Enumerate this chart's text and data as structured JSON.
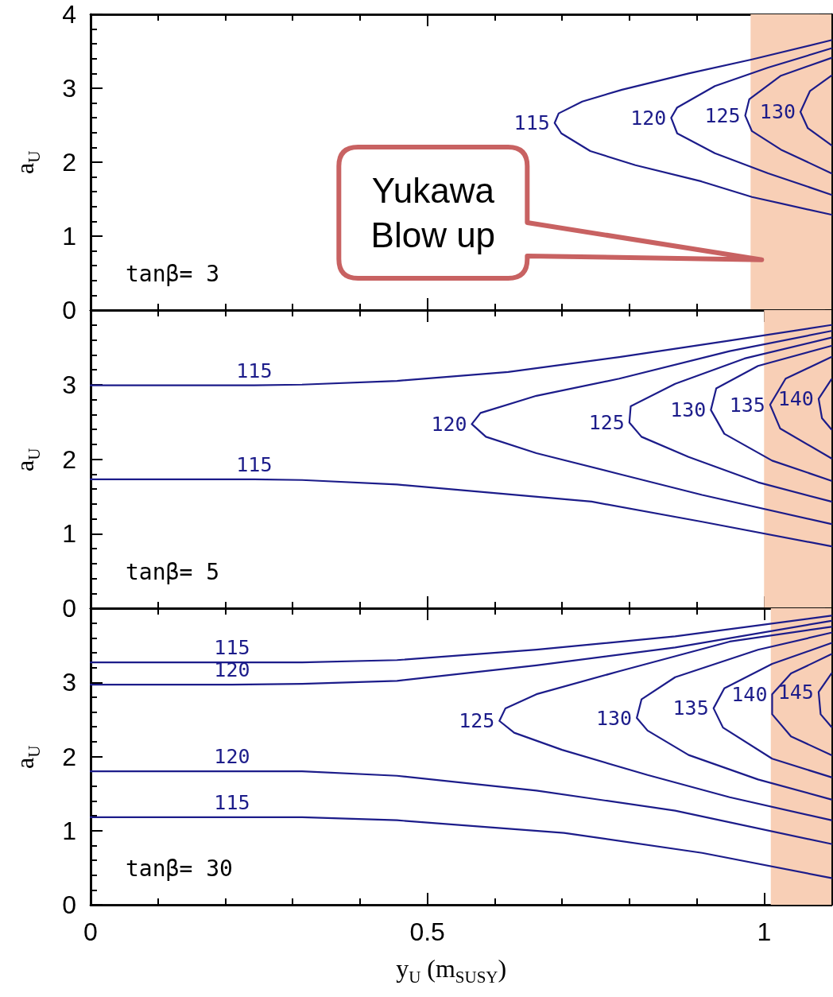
{
  "chart_data": [
    {
      "type": "line",
      "xlim": [
        0,
        1.1
      ],
      "ylim": [
        0,
        4
      ],
      "ylabel": "a$_{U}$",
      "tick_labels": "y",
      "marker": "none",
      "line_style": "solid",
      "xticks": [
        0,
        {
          "value": 0.1,
          "label": null
        },
        {
          "value": 0.2,
          "label": null
        },
        {
          "value": 0.3,
          "label": null
        },
        {
          "value": 0.4,
          "label": null
        },
        0.5,
        {
          "value": 0.6,
          "label": null
        },
        {
          "value": 0.7,
          "label": null
        },
        {
          "value": 0.8,
          "label": null
        },
        {
          "value": 0.9,
          "label": null
        },
        1
      ],
      "yticks": [
        0,
        {
          "value": 0.2,
          "label": null
        },
        {
          "value": 0.4,
          "label": null
        },
        {
          "value": 0.6,
          "label": null
        },
        {
          "value": 0.8,
          "label": null
        },
        1,
        {
          "value": 1.2,
          "label": null
        },
        {
          "value": 1.4,
          "label": null
        },
        {
          "value": 1.6,
          "label": null
        },
        {
          "value": 1.8,
          "label": null
        },
        2,
        {
          "value": 2.2,
          "label": null
        },
        {
          "value": 2.4,
          "label": null
        },
        {
          "value": 2.6,
          "label": null
        },
        {
          "value": 2.8,
          "label": null
        },
        3,
        {
          "value": 3.2,
          "label": null
        },
        {
          "value": 3.4,
          "label": null
        },
        {
          "value": 3.6,
          "label": null
        },
        {
          "value": 3.8,
          "label": null
        },
        4
      ],
      "bands": [
        {
          "axis": "x",
          "from": 0.98,
          "to": 1.1,
          "color": "#f8cfb6"
        }
      ],
      "annotations": [
        "tanβ= 3",
        "Yukawa\nBlow up"
      ],
      "series": [
        {
          "name": "115",
          "color": "#1c1c8a",
          "x": [
            1.1,
            0.982,
            0.888,
            0.789,
            0.73,
            0.695,
            0.689,
            0.699,
            0.742,
            0.809,
            0.907,
            0.982,
            1.1
          ],
          "values": [
            3.65,
            3.39,
            3.2,
            2.98,
            2.82,
            2.66,
            2.53,
            2.39,
            2.15,
            1.96,
            1.74,
            1.53,
            1.29
          ]
        },
        {
          "name": "120",
          "color": "#1c1c8a",
          "x": [
            1.1,
            1.006,
            0.927,
            0.871,
            0.862,
            0.871,
            0.927,
            1.006,
            1.1
          ],
          "values": [
            3.54,
            3.28,
            3.03,
            2.74,
            2.6,
            2.39,
            2.12,
            1.85,
            1.56
          ]
        },
        {
          "name": "125",
          "color": "#1c1c8a",
          "x": [
            1.1,
            1.025,
            0.978,
            0.972,
            0.982,
            1.025,
            1.1
          ],
          "values": [
            3.41,
            3.17,
            2.85,
            2.63,
            2.42,
            2.17,
            1.85
          ]
        },
        {
          "name": "130",
          "color": "#1c1c8a",
          "x": [
            1.1,
            1.068,
            1.054,
            1.065,
            1.1
          ],
          "values": [
            3.17,
            2.96,
            2.68,
            2.46,
            2.23
          ]
        }
      ]
    },
    {
      "type": "line",
      "xlim": [
        0,
        1.1
      ],
      "ylim": [
        0,
        4
      ],
      "ylabel": "a$_{U}$",
      "tick_labels": "y",
      "marker": "none",
      "line_style": "solid",
      "xticks": [
        0,
        {
          "value": 0.1,
          "label": null
        },
        {
          "value": 0.2,
          "label": null
        },
        {
          "value": 0.3,
          "label": null
        },
        {
          "value": 0.4,
          "label": null
        },
        0.5,
        {
          "value": 0.6,
          "label": null
        },
        {
          "value": 0.7,
          "label": null
        },
        {
          "value": 0.8,
          "label": null
        },
        {
          "value": 0.9,
          "label": null
        },
        1
      ],
      "yticks": [
        0,
        {
          "value": 0.2,
          "label": null
        },
        {
          "value": 0.4,
          "label": null
        },
        {
          "value": 0.6,
          "label": null
        },
        {
          "value": 0.8,
          "label": null
        },
        1,
        {
          "value": 1.2,
          "label": null
        },
        {
          "value": 1.4,
          "label": null
        },
        {
          "value": 1.6,
          "label": null
        },
        {
          "value": 1.8,
          "label": null
        },
        2,
        {
          "value": 2.2,
          "label": null
        },
        {
          "value": 2.4,
          "label": null
        },
        {
          "value": 2.6,
          "label": null
        },
        {
          "value": 2.8,
          "label": null
        },
        3,
        {
          "value": 3.2,
          "label": null
        },
        {
          "value": 3.4,
          "label": null
        },
        {
          "value": 3.6,
          "label": null
        },
        {
          "value": 3.8,
          "label": null
        },
        {
          "value": 4,
          "label": null
        }
      ],
      "bands": [
        {
          "axis": "x",
          "from": 1.0,
          "to": 1.1,
          "color": "#f8cfb6"
        }
      ],
      "annotations": [
        "tanβ= 5"
      ],
      "series": [
        {
          "name": "115",
          "color": "#1c1c8a",
          "x": [
            0,
            0.243,
            0.314,
            0.455,
            0.62,
            0.785,
            0.949,
            1.1
          ],
          "values": [
            2.99,
            2.99,
            3.0,
            3.05,
            3.17,
            3.37,
            3.59,
            3.8
          ]
        },
        {
          "name": "115",
          "color": "#1c1c8a",
          "x": [
            0,
            0.243,
            0.314,
            0.455,
            0.744,
            0.908,
            1.1
          ],
          "values": [
            1.73,
            1.73,
            1.72,
            1.66,
            1.43,
            1.16,
            0.83
          ]
        },
        {
          "name": "120",
          "color": "#1c1c8a",
          "x": [
            1.1,
            0.949,
            0.785,
            0.662,
            0.579,
            0.566,
            0.587,
            0.662,
            0.785,
            0.908,
            1.1
          ],
          "values": [
            3.72,
            3.45,
            3.08,
            2.85,
            2.62,
            2.47,
            2.3,
            2.08,
            1.8,
            1.52,
            1.13
          ]
        },
        {
          "name": "125",
          "color": "#1c1c8a",
          "x": [
            1.1,
            0.971,
            0.868,
            0.802,
            0.8,
            0.818,
            0.888,
            0.991,
            1.1
          ],
          "values": [
            3.63,
            3.35,
            3.01,
            2.71,
            2.49,
            2.3,
            2.03,
            1.69,
            1.43
          ]
        },
        {
          "name": "130",
          "color": "#1c1c8a",
          "x": [
            1.1,
            0.991,
            0.929,
            0.921,
            0.941,
            1.012,
            1.1
          ],
          "values": [
            3.52,
            3.25,
            2.95,
            2.66,
            2.34,
            1.98,
            1.71
          ]
        },
        {
          "name": "135",
          "color": "#1c1c8a",
          "x": [
            1.1,
            1.032,
            1.009,
            1.024,
            1.1
          ],
          "values": [
            3.37,
            3.08,
            2.73,
            2.41,
            2.01
          ]
        },
        {
          "name": "140",
          "color": "#1c1c8a",
          "x": [
            1.1,
            1.081,
            1.086,
            1.1
          ],
          "values": [
            3.07,
            2.81,
            2.55,
            2.4
          ]
        }
      ]
    },
    {
      "type": "line",
      "xlim": [
        0,
        1.1
      ],
      "ylim": [
        0,
        4
      ],
      "ylabel": "a$_{U}$",
      "xlabel": "y$_{U}$  (m$_{SUSY}$)",
      "marker": "none",
      "line_style": "solid",
      "xticks": [
        0,
        {
          "value": 0.1,
          "label": null
        },
        {
          "value": 0.2,
          "label": null
        },
        {
          "value": 0.3,
          "label": null
        },
        {
          "value": 0.4,
          "label": null
        },
        0.5,
        {
          "value": 0.6,
          "label": null
        },
        {
          "value": 0.7,
          "label": null
        },
        {
          "value": 0.8,
          "label": null
        },
        {
          "value": 0.9,
          "label": null
        },
        1
      ],
      "yticks": [
        0,
        {
          "value": 0.2,
          "label": null
        },
        {
          "value": 0.4,
          "label": null
        },
        {
          "value": 0.6,
          "label": null
        },
        {
          "value": 0.8,
          "label": null
        },
        1,
        {
          "value": 1.2,
          "label": null
        },
        {
          "value": 1.4,
          "label": null
        },
        {
          "value": 1.6,
          "label": null
        },
        {
          "value": 1.8,
          "label": null
        },
        2,
        {
          "value": 2.2,
          "label": null
        },
        {
          "value": 2.4,
          "label": null
        },
        {
          "value": 2.6,
          "label": null
        },
        {
          "value": 2.8,
          "label": null
        },
        3,
        {
          "value": 3.2,
          "label": null
        },
        {
          "value": 3.4,
          "label": null
        },
        {
          "value": 3.6,
          "label": null
        },
        {
          "value": 3.8,
          "label": null
        },
        {
          "value": 4,
          "label": null
        }
      ],
      "bands": [
        {
          "axis": "x",
          "from": 1.01,
          "to": 1.1,
          "color": "#f8cfb6"
        }
      ],
      "annotations": [
        "tanβ= 30"
      ],
      "series": [
        {
          "name": "115",
          "color": "#1c1c8a",
          "x": [
            0,
            0.21,
            0.314,
            0.455,
            0.662,
            0.868,
            1.1
          ],
          "values": [
            3.27,
            3.27,
            3.27,
            3.3,
            3.44,
            3.62,
            3.9
          ]
        },
        {
          "name": "120",
          "color": "#1c1c8a",
          "x": [
            0,
            0.21,
            0.314,
            0.455,
            0.662,
            0.868,
            1.1
          ],
          "values": [
            2.97,
            2.97,
            2.98,
            3.02,
            3.23,
            3.47,
            3.83
          ]
        },
        {
          "name": "125",
          "color": "#1c1c8a",
          "x": [
            1.1,
            0.949,
            0.785,
            0.662,
            0.616,
            0.607,
            0.629,
            0.7,
            0.827,
            0.949,
            1.1
          ],
          "values": [
            3.75,
            3.55,
            3.15,
            2.84,
            2.65,
            2.48,
            2.32,
            2.09,
            1.75,
            1.45,
            1.14
          ]
        },
        {
          "name": "130",
          "color": "#1c1c8a",
          "x": [
            1.1,
            0.991,
            0.868,
            0.818,
            0.811,
            0.827,
            0.888,
            0.991,
            1.1
          ],
          "values": [
            3.67,
            3.44,
            3.07,
            2.77,
            2.52,
            2.35,
            2.02,
            1.69,
            1.42
          ]
        },
        {
          "name": "135",
          "color": "#1c1c8a",
          "x": [
            1.1,
            1.012,
            0.941,
            0.925,
            0.939,
            1.012,
            1.1
          ],
          "values": [
            3.53,
            3.25,
            2.92,
            2.65,
            2.39,
            1.97,
            1.72
          ]
        },
        {
          "name": "140",
          "color": "#1c1c8a",
          "x": [
            1.1,
            1.04,
            1.012,
            1.012,
            1.04,
            1.1
          ],
          "values": [
            3.38,
            3.12,
            2.84,
            2.57,
            2.27,
            2.02
          ]
        },
        {
          "name": "145",
          "color": "#1c1c8a",
          "x": [
            1.1,
            1.081,
            1.084,
            1.1
          ],
          "values": [
            3.12,
            2.87,
            2.57,
            2.4
          ]
        },
        {
          "name": "120",
          "color": "#1c1c8a",
          "x": [
            0,
            0.21,
            0.314,
            0.455,
            0.662,
            0.868,
            1.1
          ],
          "values": [
            1.8,
            1.8,
            1.8,
            1.74,
            1.54,
            1.27,
            0.82
          ]
        },
        {
          "name": "115",
          "color": "#1c1c8a",
          "x": [
            0,
            0.21,
            0.314,
            0.455,
            0.703,
            0.908,
            1.1
          ],
          "values": [
            1.18,
            1.18,
            1.18,
            1.14,
            0.97,
            0.7,
            0.36
          ]
        }
      ]
    }
  ]
}
